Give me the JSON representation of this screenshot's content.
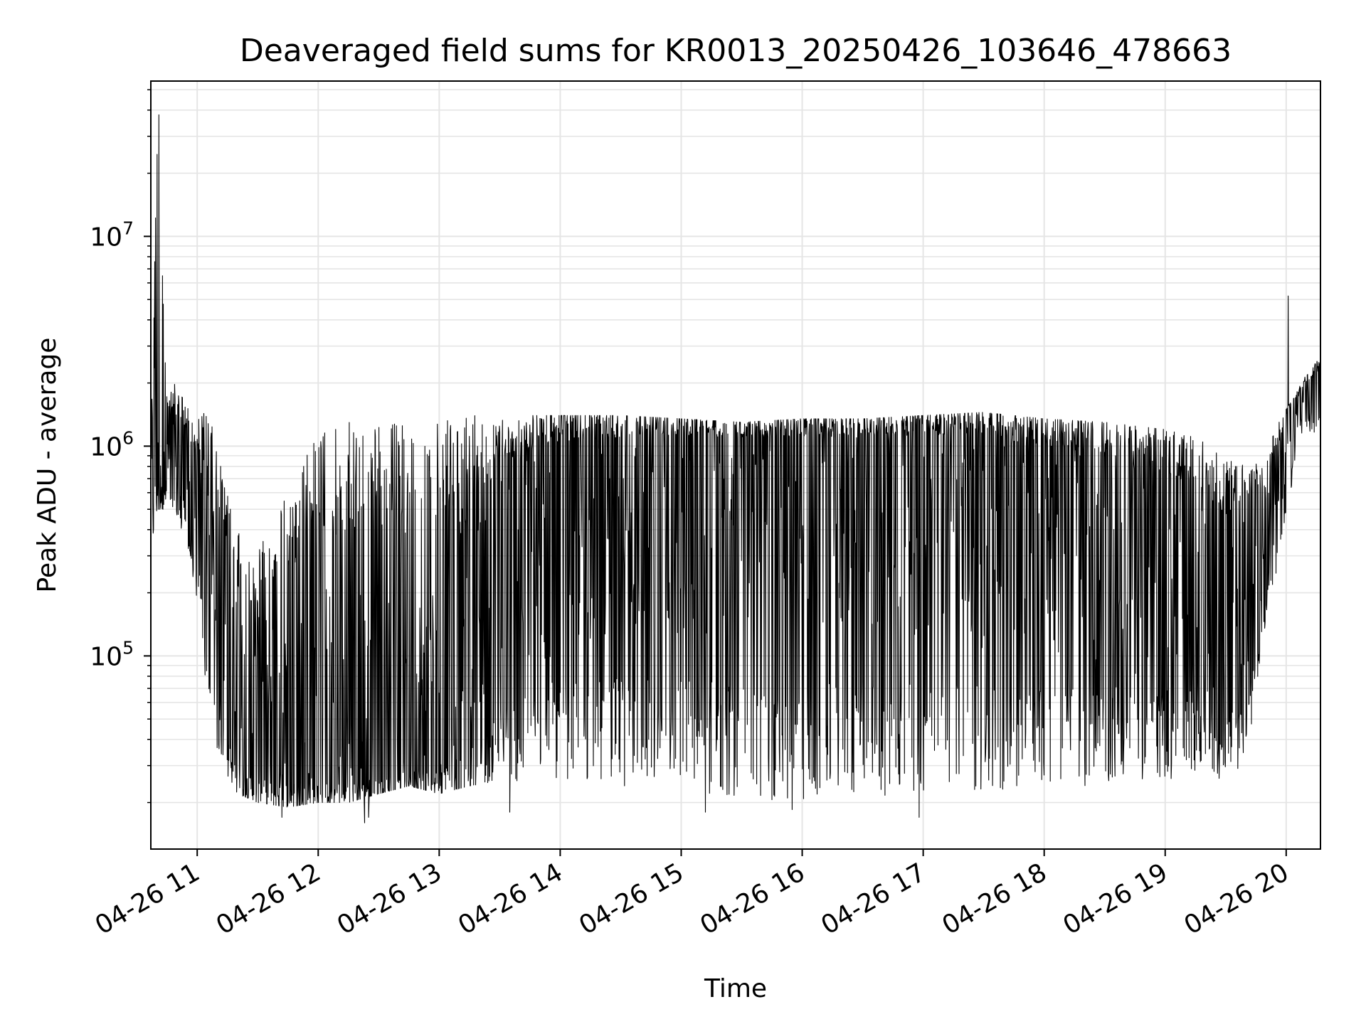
{
  "chart_data": {
    "type": "line",
    "title": "Deaveraged field sums for KR0013_20250426_103646_478663",
    "xlabel": "Time",
    "ylabel": "Peak ADU - average",
    "xlim": [
      "2025-04-26 10:37",
      "2025-04-26 20:17"
    ],
    "ylim": [
      12000,
      55000000
    ],
    "y_scale": "log",
    "grid": true,
    "line_color": "#000000",
    "grid_color": "#e5e5e5",
    "x_tick_labels": [
      "04-26 11",
      "04-26 12",
      "04-26 13",
      "04-26 14",
      "04-26 15",
      "04-26 16",
      "04-26 17",
      "04-26 18",
      "04-26 19",
      "04-26 20"
    ],
    "y_major_ticks": [
      {
        "value": 100000,
        "base": "10",
        "exp": "5"
      },
      {
        "value": 1000000,
        "base": "10",
        "exp": "6"
      },
      {
        "value": 10000000,
        "base": "10",
        "exp": "7"
      }
    ],
    "series": [
      {
        "x": [
          "2025-04-26 10:37",
          "2025-04-26 10:40",
          "2025-04-26 10:45",
          "2025-04-26 10:50",
          "2025-04-26 10:55",
          "2025-04-26 11:00",
          "2025-04-26 11:05",
          "2025-04-26 11:10",
          "2025-04-26 11:15",
          "2025-04-26 11:20",
          "2025-04-26 11:25",
          "2025-04-26 11:30",
          "2025-04-26 11:45",
          "2025-04-26 12:00",
          "2025-04-26 12:15",
          "2025-04-26 12:30",
          "2025-04-26 12:45",
          "2025-04-26 13:00",
          "2025-04-26 13:15",
          "2025-04-26 13:30",
          "2025-04-26 13:45",
          "2025-04-26 14:00",
          "2025-04-26 14:30",
          "2025-04-26 15:00",
          "2025-04-26 15:30",
          "2025-04-26 16:00",
          "2025-04-26 16:30",
          "2025-04-26 17:00",
          "2025-04-26 17:30",
          "2025-04-26 18:00",
          "2025-04-26 18:30",
          "2025-04-26 19:00",
          "2025-04-26 19:15",
          "2025-04-26 19:30",
          "2025-04-26 19:40",
          "2025-04-26 19:50",
          "2025-04-26 20:00",
          "2025-04-26 20:05",
          "2025-04-26 20:10",
          "2025-04-26 20:17"
        ],
        "high": [
          1300000,
          38000000,
          1900000,
          2000000,
          1600000,
          1400000,
          1500000,
          1000000,
          600000,
          400000,
          300000,
          350000,
          600000,
          1200000,
          1300000,
          1300000,
          1300000,
          1300000,
          1400000,
          1400000,
          1400000,
          1400000,
          1400000,
          1350000,
          1300000,
          1350000,
          1350000,
          1400000,
          1450000,
          1350000,
          1300000,
          1200000,
          1100000,
          900000,
          800000,
          1000000,
          1500000,
          1800000,
          2200000,
          2700000
        ],
        "mid": [
          600000,
          1200000,
          900000,
          800000,
          600000,
          450000,
          250000,
          150000,
          80000,
          50000,
          45000,
          42000,
          40000,
          38000,
          37000,
          38000,
          40000,
          45000,
          90000,
          250000,
          450000,
          600000,
          700000,
          800000,
          800000,
          750000,
          800000,
          750000,
          700000,
          550000,
          450000,
          300000,
          200000,
          150000,
          200000,
          300000,
          1000000,
          1600000,
          1700000,
          1600000
        ],
        "low": [
          300000,
          500000,
          500000,
          450000,
          350000,
          180000,
          60000,
          35000,
          27000,
          22000,
          21000,
          20000,
          19000,
          20000,
          20000,
          22000,
          24000,
          22000,
          24000,
          25000,
          25000,
          26000,
          24000,
          23000,
          21000,
          20000,
          22000,
          21000,
          22000,
          24000,
          24000,
          25000,
          26000,
          26000,
          30000,
          150000,
          400000,
          900000,
          1200000,
          1100000
        ],
        "spikes": [
          {
            "x": "2025-04-26 10:41",
            "y": 38000000
          },
          {
            "x": "2025-04-26 11:42",
            "y": 17000
          },
          {
            "x": "2025-04-26 12:23",
            "y": 16000
          },
          {
            "x": "2025-04-26 12:25",
            "y": 17000
          },
          {
            "x": "2025-04-26 13:35",
            "y": 18000
          },
          {
            "x": "2025-04-26 15:12",
            "y": 18000
          },
          {
            "x": "2025-04-26 15:55",
            "y": 18500
          },
          {
            "x": "2025-04-26 16:58",
            "y": 17000
          },
          {
            "x": "2025-04-26 20:01",
            "y": 5200000
          }
        ]
      }
    ]
  }
}
